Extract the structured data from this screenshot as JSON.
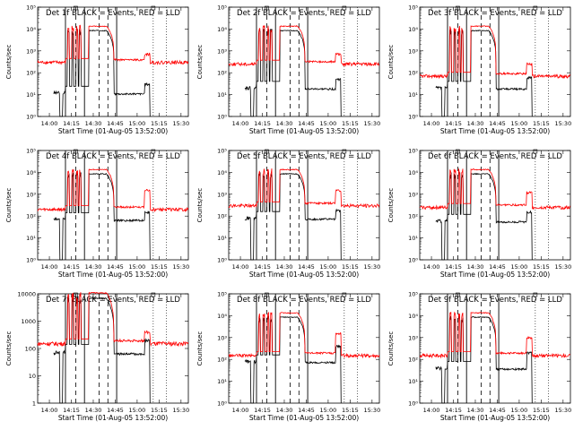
{
  "chart_data": [
    {
      "type": "line",
      "title": "Det 1f BLACK = Events, RED = LLD",
      "ylabel": "Counts/sec",
      "xlabel": "Start Time (01-Aug-05 13:52:00)",
      "x_ticks": [
        "14:00",
        "14:15",
        "14:30",
        "14:45",
        "15:00",
        "15:15",
        "15:30"
      ],
      "y_ticks": [
        "10⁰",
        "10¹",
        "10²",
        "10³",
        "10⁴",
        "10⁵"
      ],
      "ylim": [
        1,
        100000
      ],
      "xlim": [
        "13:52",
        "15:35"
      ],
      "log_y": true,
      "series": [
        {
          "name": "BLACK = Events",
          "color": "#000000",
          "baseline": 12,
          "late_level": 30
        },
        {
          "name": "RED = LLD",
          "color": "#ff0000",
          "baseline": 300,
          "late_level": 700
        }
      ],
      "red_peak": 15000,
      "black_peak": 10000
    },
    {
      "type": "line",
      "title": "Det 2f BLACK = Events, RED = LLD",
      "ylabel": "Counts/sec",
      "xlabel": "Start Time (01-Aug-05 13:52:00)",
      "x_ticks": [
        "14:00",
        "14:15",
        "14:30",
        "14:45",
        "15:00",
        "15:15",
        "15:30"
      ],
      "y_ticks": [
        "10⁰",
        "10¹",
        "10²",
        "10³",
        "10⁴",
        "10⁵"
      ],
      "ylim": [
        1,
        100000
      ],
      "xlim": [
        "13:52",
        "15:35"
      ],
      "log_y": true,
      "series": [
        {
          "name": "BLACK = Events",
          "color": "#000000",
          "baseline": 20,
          "late_level": 50
        },
        {
          "name": "RED = LLD",
          "color": "#ff0000",
          "baseline": 250,
          "late_level": 700
        }
      ],
      "red_peak": 15000,
      "black_peak": 10000
    },
    {
      "type": "line",
      "title": "Det 3f BLACK = Events, RED = LLD",
      "ylabel": "Counts/sec",
      "xlabel": "Start Time (01-Aug-05 13:52:00)",
      "x_ticks": [
        "14:00",
        "14:15",
        "14:30",
        "14:45",
        "15:00",
        "15:15",
        "15:30"
      ],
      "y_ticks": [
        "10⁰",
        "10¹",
        "10²",
        "10³",
        "10⁴",
        "10⁵"
      ],
      "ylim": [
        1,
        100000
      ],
      "xlim": [
        "13:52",
        "15:35"
      ],
      "log_y": true,
      "series": [
        {
          "name": "BLACK = Events",
          "color": "#000000",
          "baseline": 20,
          "late_level": 60
        },
        {
          "name": "RED = LLD",
          "color": "#ff0000",
          "baseline": 70,
          "late_level": 250
        }
      ],
      "red_peak": 15000,
      "black_peak": 10000
    },
    {
      "type": "line",
      "title": "Det 4f BLACK = Events, RED = LLD",
      "ylabel": "Counts/sec",
      "xlabel": "Start Time (01-Aug-05 13:52:00)",
      "x_ticks": [
        "14:00",
        "14:15",
        "14:30",
        "14:45",
        "15:00",
        "15:15",
        "15:30"
      ],
      "y_ticks": [
        "10⁰",
        "10¹",
        "10²",
        "10³",
        "10⁴",
        "10⁵"
      ],
      "ylim": [
        1,
        100000
      ],
      "xlim": [
        "13:52",
        "15:35"
      ],
      "log_y": true,
      "series": [
        {
          "name": "BLACK = Events",
          "color": "#000000",
          "baseline": 70,
          "late_level": 150
        },
        {
          "name": "RED = LLD",
          "color": "#ff0000",
          "baseline": 200,
          "late_level": 1500
        }
      ],
      "red_peak": 15000,
      "black_peak": 10000
    },
    {
      "type": "line",
      "title": "Det 5f BLACK = Events, RED = LLD",
      "ylabel": "Counts/sec",
      "xlabel": "Start Time (01-Aug-05 13:52:00)",
      "x_ticks": [
        "14:00",
        "14:15",
        "14:30",
        "14:45",
        "15:00",
        "15:15",
        "15:30"
      ],
      "y_ticks": [
        "10⁰",
        "10¹",
        "10²",
        "10³",
        "10⁴",
        "10⁵"
      ],
      "ylim": [
        1,
        100000
      ],
      "xlim": [
        "13:52",
        "15:35"
      ],
      "log_y": true,
      "series": [
        {
          "name": "BLACK = Events",
          "color": "#000000",
          "baseline": 80,
          "late_level": 180
        },
        {
          "name": "RED = LLD",
          "color": "#ff0000",
          "baseline": 300,
          "late_level": 1500
        }
      ],
      "red_peak": 15000,
      "black_peak": 10000
    },
    {
      "type": "line",
      "title": "Det 6f BLACK = Events, RED = LLD",
      "ylabel": "Counts/sec",
      "xlabel": "Start Time (01-Aug-05 13:52:00)",
      "x_ticks": [
        "14:00",
        "14:15",
        "14:30",
        "14:45",
        "15:00",
        "15:15",
        "15:30"
      ],
      "y_ticks": [
        "10⁰",
        "10¹",
        "10²",
        "10³",
        "10⁴",
        "10⁵"
      ],
      "ylim": [
        1,
        100000
      ],
      "xlim": [
        "13:52",
        "15:35"
      ],
      "log_y": true,
      "series": [
        {
          "name": "BLACK = Events",
          "color": "#000000",
          "baseline": 60,
          "late_level": 150
        },
        {
          "name": "RED = LLD",
          "color": "#ff0000",
          "baseline": 250,
          "late_level": 1200
        }
      ],
      "red_peak": 15000,
      "black_peak": 10000
    },
    {
      "type": "line",
      "title": "Det 7f BLACK = Events, RED = LLD",
      "ylabel": "Counts/sec",
      "xlabel": "Start Time (01-Aug-05 13:52:00)",
      "x_ticks": [
        "14:00",
        "14:15",
        "14:30",
        "14:45",
        "15:00",
        "15:15",
        "15:30"
      ],
      "y_ticks": [
        "1",
        "10",
        "100",
        "1000",
        "10000"
      ],
      "ylim": [
        1,
        10000
      ],
      "xlim": [
        "13:52",
        "15:35"
      ],
      "log_y": true,
      "series": [
        {
          "name": "BLACK = Events",
          "color": "#000000",
          "baseline": 70,
          "late_level": 200
        },
        {
          "name": "RED = LLD",
          "color": "#ff0000",
          "baseline": 150,
          "late_level": 400
        }
      ],
      "red_peak": 12000,
      "black_peak": 8000
    },
    {
      "type": "line",
      "title": "Det 8f BLACK = Events, RED = LLD",
      "ylabel": "Counts/sec",
      "xlabel": "Start Time (01-Aug-05 13:52:00)",
      "x_ticks": [
        "14:00",
        "14:15",
        "14:30",
        "14:45",
        "15:00",
        "15:15",
        "15:30"
      ],
      "y_ticks": [
        "10⁰",
        "10¹",
        "10²",
        "10³",
        "10⁴",
        "10⁵"
      ],
      "ylim": [
        1,
        100000
      ],
      "xlim": [
        "13:52",
        "15:35"
      ],
      "log_y": true,
      "series": [
        {
          "name": "BLACK = Events",
          "color": "#000000",
          "baseline": 80,
          "late_level": 400
        },
        {
          "name": "RED = LLD",
          "color": "#ff0000",
          "baseline": 150,
          "late_level": 1500
        }
      ],
      "red_peak": 15000,
      "black_peak": 10000
    },
    {
      "type": "line",
      "title": "Det 9f BLACK = Events, RED = LLD",
      "ylabel": "Counts/sec",
      "xlabel": "Start Time (01-Aug-05 13:52:00)",
      "x_ticks": [
        "14:00",
        "14:15",
        "14:30",
        "14:45",
        "15:00",
        "15:15",
        "15:30"
      ],
      "y_ticks": [
        "10⁰",
        "10¹",
        "10²",
        "10³",
        "10⁴",
        "10⁵"
      ],
      "ylim": [
        1,
        100000
      ],
      "xlim": [
        "13:52",
        "15:35"
      ],
      "log_y": true,
      "series": [
        {
          "name": "BLACK = Events",
          "color": "#000000",
          "baseline": 40,
          "late_level": 200
        },
        {
          "name": "RED = LLD",
          "color": "#ff0000",
          "baseline": 150,
          "late_level": 1000
        }
      ],
      "red_peak": 15000,
      "black_peak": 10000
    }
  ]
}
